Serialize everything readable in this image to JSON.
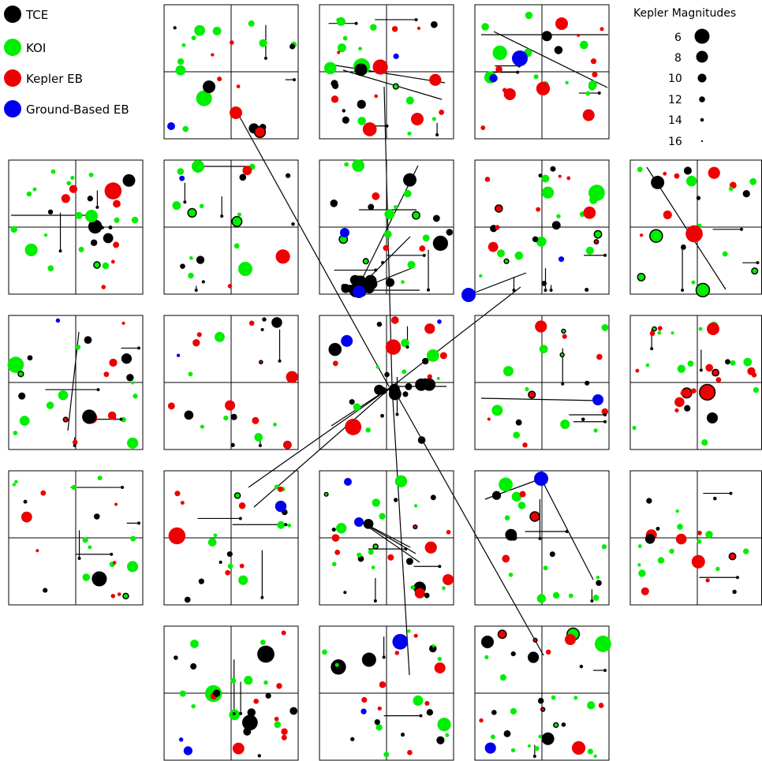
{
  "legend": {
    "items": [
      {
        "label": "TCE",
        "color": "#000000"
      },
      {
        "label": "KOI",
        "color": "#00ee00"
      },
      {
        "label": "Kepler EB",
        "color": "#ee0000"
      },
      {
        "label": "Ground-Based EB",
        "color": "#0000ee"
      }
    ]
  },
  "magnitude_key": {
    "title": "Kepler Magnitudes",
    "values": [
      "6",
      "8",
      "10",
      "12",
      "14",
      "16"
    ]
  }
}
